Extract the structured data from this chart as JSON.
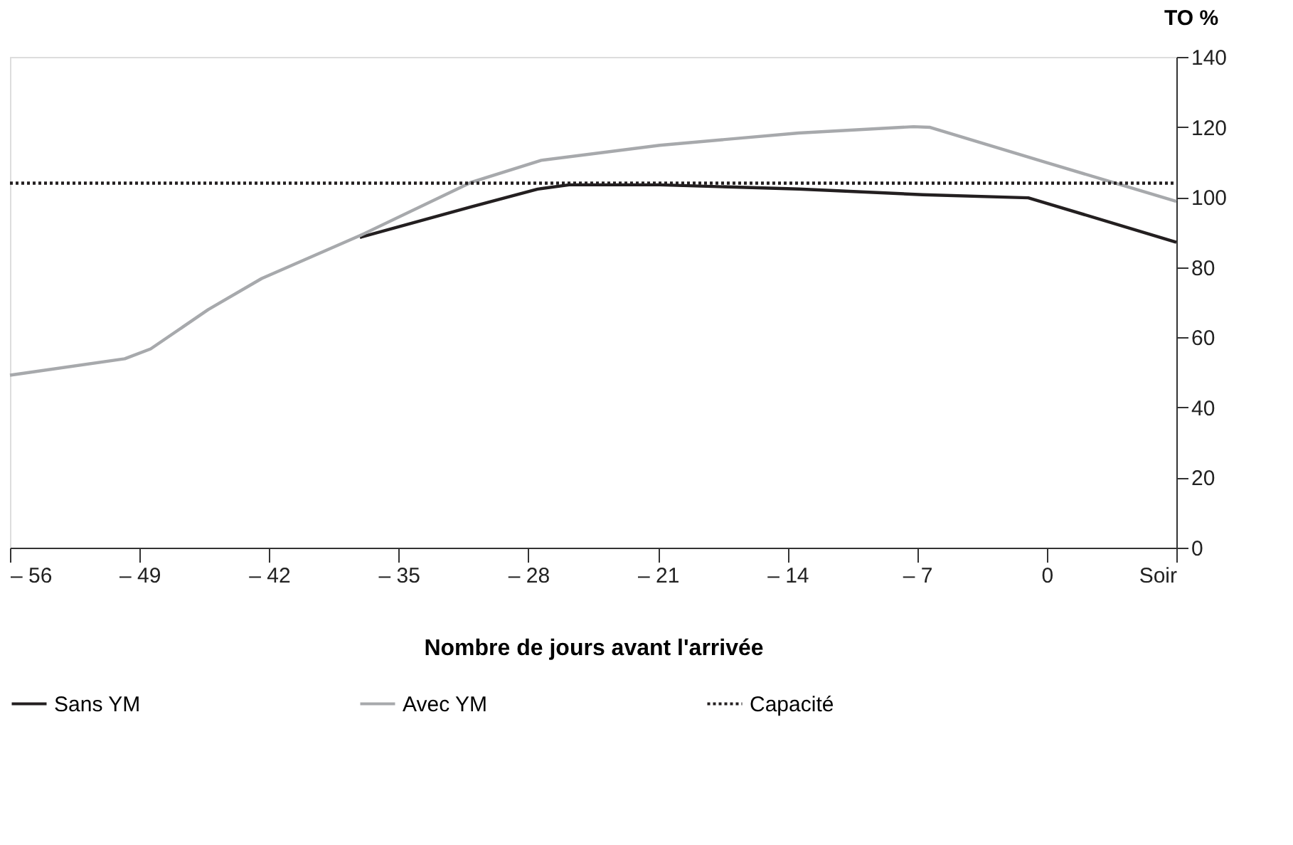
{
  "chart_data": {
    "type": "line",
    "xlabel": "Nombre de jours avant l'arrivée",
    "ylabel": "TO %",
    "xlim": [
      -56,
      7
    ],
    "ylim": [
      0,
      140
    ],
    "xticks": [
      {
        "value": -56,
        "label": "– 56"
      },
      {
        "value": -49,
        "label": "– 49"
      },
      {
        "value": -42,
        "label": "– 42"
      },
      {
        "value": -35,
        "label": "– 35"
      },
      {
        "value": -28,
        "label": "– 28"
      },
      {
        "value": -21,
        "label": "– 21"
      },
      {
        "value": -14,
        "label": "– 14"
      },
      {
        "value": -7,
        "label": "– 7"
      },
      0,
      {
        "value": 7,
        "label": "Soir"
      }
    ],
    "yticks": [
      0,
      20,
      40,
      60,
      80,
      100,
      120,
      140
    ],
    "grid": false,
    "legend": "bottom",
    "line_style": "solid",
    "marker": "none",
    "series": [
      {
        "name": "Sans YM",
        "color": "#231f20",
        "x": [
          -37.1,
          -31.1,
          -27.5,
          -25.8,
          -20.9,
          -13.4,
          -6.7,
          -1.0,
          -0.1,
          7
        ],
        "values": [
          88.5,
          97.2,
          102.3,
          103.5,
          103.5,
          102.3,
          100.7,
          99.8,
          98.4,
          87.1
        ]
      },
      {
        "name": "Avec YM",
        "color": "#a7a9ac",
        "x": [
          -56,
          -49.8,
          -48.4,
          -45.3,
          -42.4,
          -37.1,
          -31.1,
          -27.3,
          -20.9,
          -13.4,
          -7.2,
          -6.3,
          -0.1,
          7
        ],
        "values": [
          49.2,
          53.9,
          56.7,
          67.9,
          76.8,
          89,
          104.2,
          110.5,
          114.8,
          118.3,
          120.1,
          119.9,
          110,
          98.8
        ]
      }
    ],
    "ref_lines": [
      {
        "axis": "y",
        "value": 104,
        "label": "Capacité",
        "color": "#231f20",
        "line_style": "dotted"
      }
    ]
  }
}
